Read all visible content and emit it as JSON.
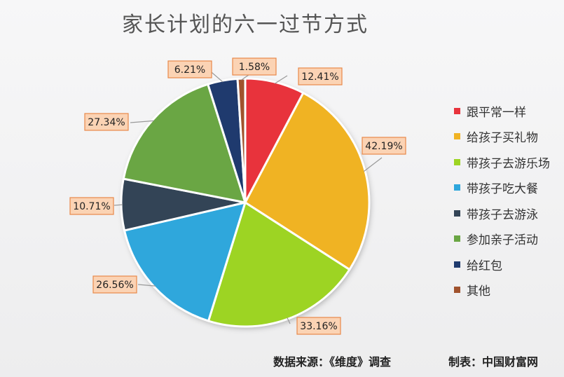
{
  "chart_data": {
    "type": "pie",
    "title": "家长计划的六一过节方式",
    "slices": [
      {
        "label": "跟平常一样",
        "value": 12.41,
        "display": "12.41%",
        "color": "#e8333c"
      },
      {
        "label": "给孩子买礼物",
        "value": 42.19,
        "display": "42.19%",
        "color": "#f0b323"
      },
      {
        "label": "带孩子去游乐场",
        "value": 33.16,
        "display": "33.16%",
        "color": "#9dd423"
      },
      {
        "label": "带孩子吃大餐",
        "value": 26.56,
        "display": "26.56%",
        "color": "#2fa7dc"
      },
      {
        "label": "带孩子去游泳",
        "value": 10.71,
        "display": "10.71%",
        "color": "#334456"
      },
      {
        "label": "参加亲子活动",
        "value": 27.34,
        "display": "27.34%",
        "color": "#6aa644"
      },
      {
        "label": "给红包",
        "value": 6.21,
        "display": "6.21%",
        "color": "#1f3a6e"
      },
      {
        "label": "其他",
        "value": 1.58,
        "display": "1.58%",
        "color": "#a0522d"
      }
    ],
    "legend_position": "right"
  },
  "footer": {
    "source": "数据来源：《维度》调查",
    "maker": "制表：中国财富网"
  }
}
